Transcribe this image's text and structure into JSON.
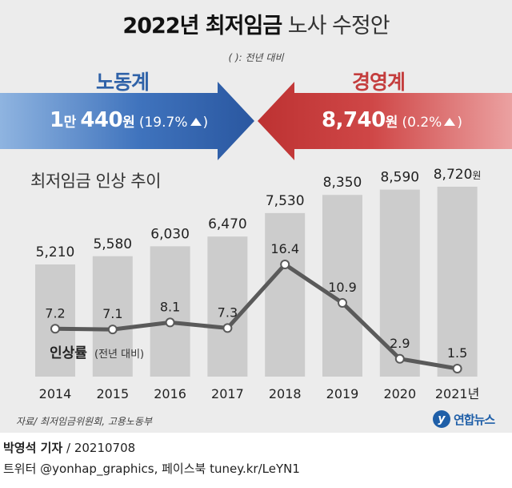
{
  "title": {
    "bold": "2022년 최저임금",
    "light": "노사 수정안"
  },
  "note": "( ): 전년 대비",
  "labor": {
    "label": "노동계",
    "amount_a": "1",
    "unit_a": "만",
    "amount_b": "440",
    "unit_b": "원",
    "change": "19.7%",
    "color": "#2f62a8"
  },
  "management": {
    "label": "경영계",
    "amount": "8,740",
    "unit": "원",
    "change": "0.2%",
    "color": "#c43d3d"
  },
  "chart_subtitle": "최저임금 인상 추이",
  "chart_data": {
    "type": "bar",
    "categories": [
      "2014",
      "2015",
      "2016",
      "2017",
      "2018",
      "2019",
      "2020",
      "2021년"
    ],
    "series": [
      {
        "values": [
          5210,
          5580,
          6030,
          6470,
          7530,
          8350,
          8590,
          8720
        ]
      },
      {
        "name": "인상률",
        "type": "line",
        "values": [
          7.2,
          7.1,
          8.1,
          7.3,
          16.4,
          10.9,
          2.9,
          1.5
        ]
      }
    ],
    "bar_labels": [
      "5,210",
      "5,580",
      "6,030",
      "6,470",
      "7,530",
      "8,350",
      "8,590",
      "8,720"
    ],
    "bar_last_unit": "원",
    "line_labels": [
      "7.2",
      "7.1",
      "8.1",
      "7.3",
      "16.4",
      "10.9",
      "2.9",
      "1.5"
    ],
    "line_legend": "인상률",
    "line_legend_note": "(전년 대비)",
    "bar_color": "#cccccc",
    "line_color": "#5a5a5a"
  },
  "source": "자료/ 최저임금위원회, 고용노동부",
  "logo": {
    "mark": "y",
    "name": "연합뉴스"
  },
  "credit": {
    "reporter": "박영석 기자",
    "date": "/ 20210708",
    "social": "트위터 @yonhap_graphics, 페이스북 tuney.kr/LeYN1"
  }
}
